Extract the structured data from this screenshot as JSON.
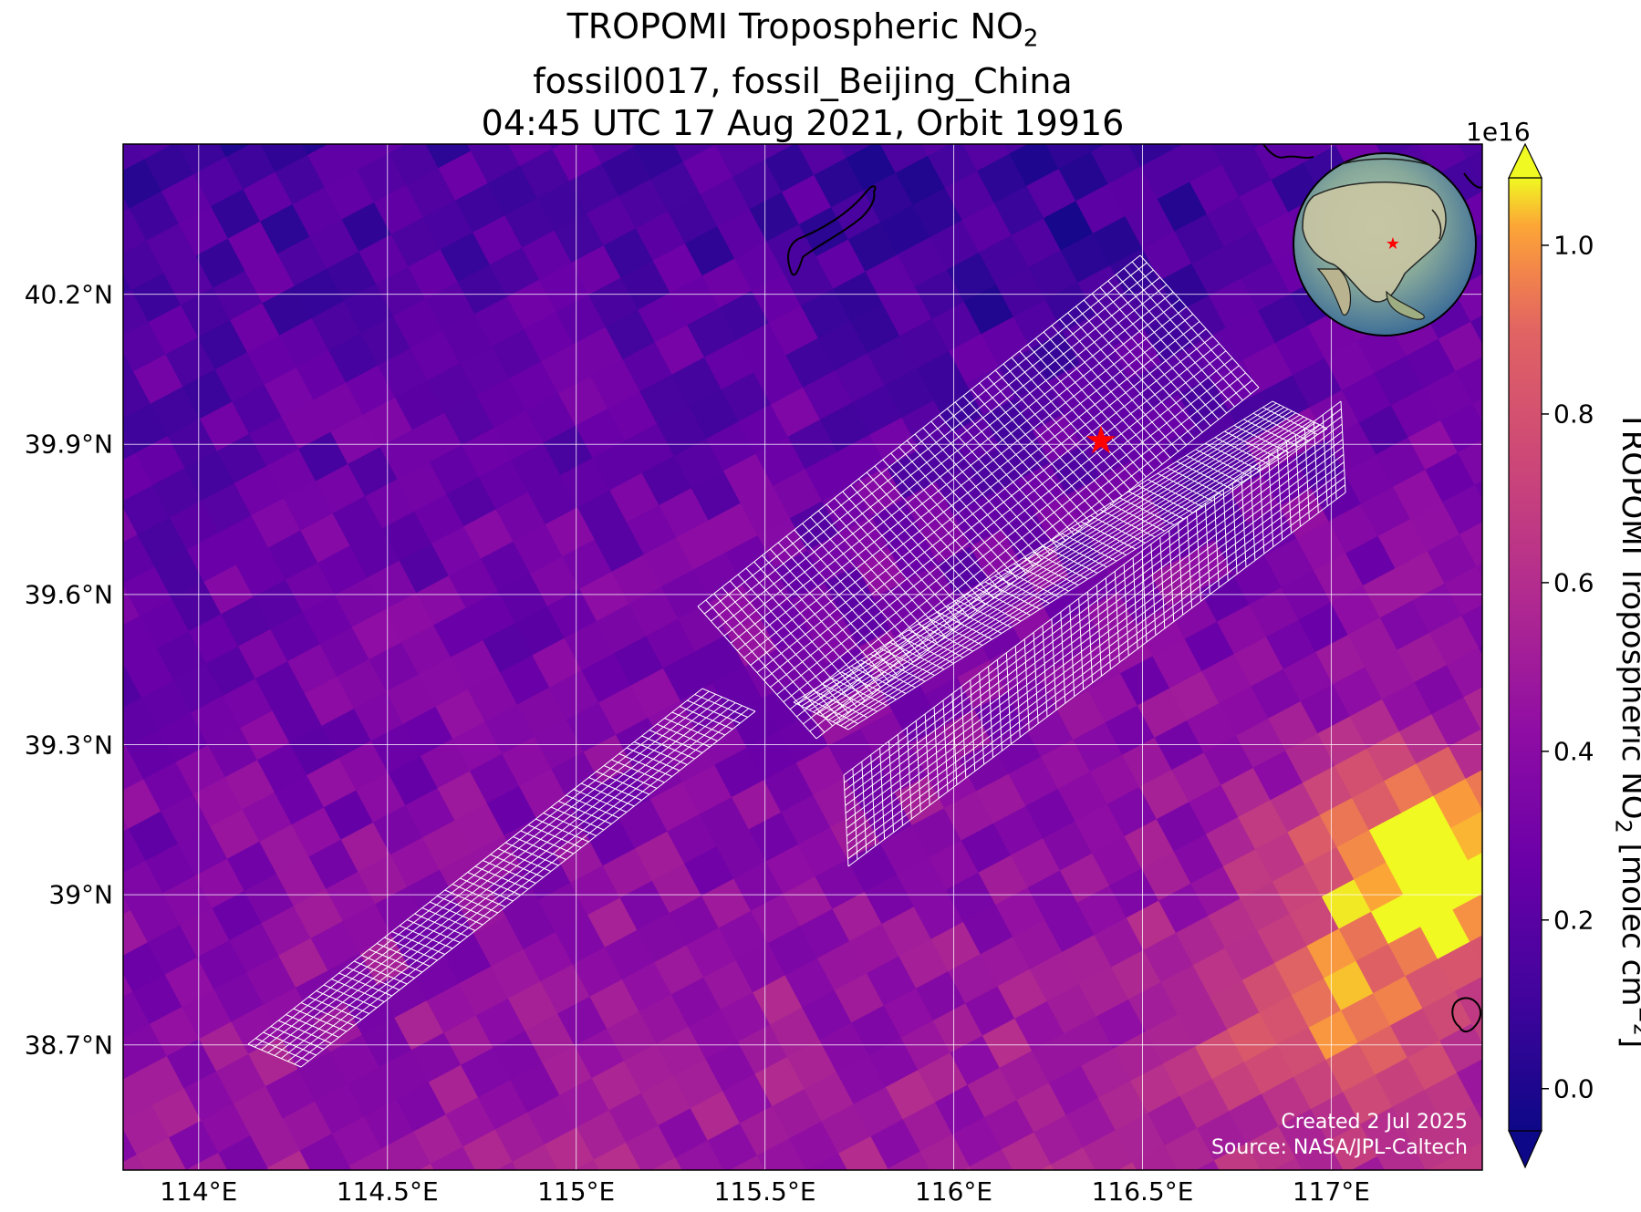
{
  "title": {
    "line1_prefix": "TROPOMI Tropospheric NO",
    "line1_sub": "2",
    "line2": "fossil0017, fossil_Beijing_China",
    "line3": "04:45 UTC 17 Aug 2021, Orbit 19916"
  },
  "axes": {
    "latitude_ticks": [
      {
        "value": 40.2,
        "label": "40.2°N"
      },
      {
        "value": 39.9,
        "label": "39.9°N"
      },
      {
        "value": 39.6,
        "label": "39.6°N"
      },
      {
        "value": 39.3,
        "label": "39.3°N"
      },
      {
        "value": 39.0,
        "label": "39°N"
      },
      {
        "value": 38.7,
        "label": "38.7°N"
      }
    ],
    "longitude_ticks": [
      {
        "value": 114.0,
        "label": "114°E"
      },
      {
        "value": 114.5,
        "label": "114.5°E"
      },
      {
        "value": 115.0,
        "label": "115°E"
      },
      {
        "value": 115.5,
        "label": "115.5°E"
      },
      {
        "value": 116.0,
        "label": "116°E"
      },
      {
        "value": 116.5,
        "label": "116.5°E"
      },
      {
        "value": 117.0,
        "label": "117°E"
      }
    ],
    "lon_range": [
      113.8,
      117.4
    ],
    "lat_range": [
      38.45,
      40.5
    ]
  },
  "colorbar": {
    "exponent": "1e16",
    "ticks": [
      {
        "value": 0.0,
        "label": "0.0"
      },
      {
        "value": 0.2,
        "label": "0.2"
      },
      {
        "value": 0.4,
        "label": "0.4"
      },
      {
        "value": 0.6,
        "label": "0.6"
      },
      {
        "value": 0.8,
        "label": "0.8"
      },
      {
        "value": 1.0,
        "label": "1.0"
      }
    ],
    "range": [
      -0.05,
      1.08
    ],
    "label_prefix": "TROPOMI Tropospheric NO",
    "label_sub": "2",
    "label_mid": " [molec cm",
    "label_sup": "−2",
    "label_end": "]",
    "colormap": "plasma"
  },
  "target": {
    "name": "fossil_Beijing_China",
    "lon": 116.39,
    "lat": 39.91,
    "marker_color": "#ff0000"
  },
  "credits": {
    "created": "Created 2 Jul 2025",
    "source": "Source: NASA/JPL-Caltech"
  },
  "colors": {
    "grid": "#ffffff",
    "coastline": "#000000",
    "target_grid": "#ffffff",
    "frame": "#000000"
  }
}
